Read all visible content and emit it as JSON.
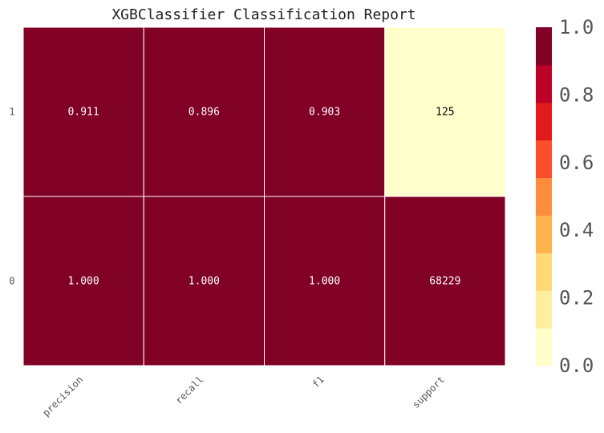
{
  "chart_data": {
    "type": "heatmap",
    "title": "XGBClassifier Classification Report",
    "columns": [
      "precision",
      "recall",
      "f1",
      "support"
    ],
    "rows": [
      "1",
      "0"
    ],
    "cells": [
      [
        0.911,
        0.896,
        0.903,
        125
      ],
      [
        1.0,
        1.0,
        1.0,
        68229
      ]
    ],
    "cell_labels": [
      [
        "0.911",
        "0.896",
        "0.903",
        "125"
      ],
      [
        "1.000",
        "1.000",
        "1.000",
        "68229"
      ]
    ],
    "color_values": [
      [
        0.911,
        0.896,
        0.903,
        0.00183
      ],
      [
        1.0,
        1.0,
        1.0,
        1.0
      ]
    ],
    "colorbar": {
      "range": [
        0.0,
        1.0
      ],
      "ticks": [
        "0.0",
        "0.2",
        "0.4",
        "0.6",
        "0.8",
        "1.0"
      ],
      "colors": [
        "#ffffcc",
        "#ffeda0",
        "#fed976",
        "#feb24c",
        "#fd8d3c",
        "#fc4e2a",
        "#e31a1c",
        "#bd0026",
        "#800026"
      ]
    },
    "colormap": "YlOrRd",
    "grid": false,
    "legend": "colorbar-right"
  }
}
